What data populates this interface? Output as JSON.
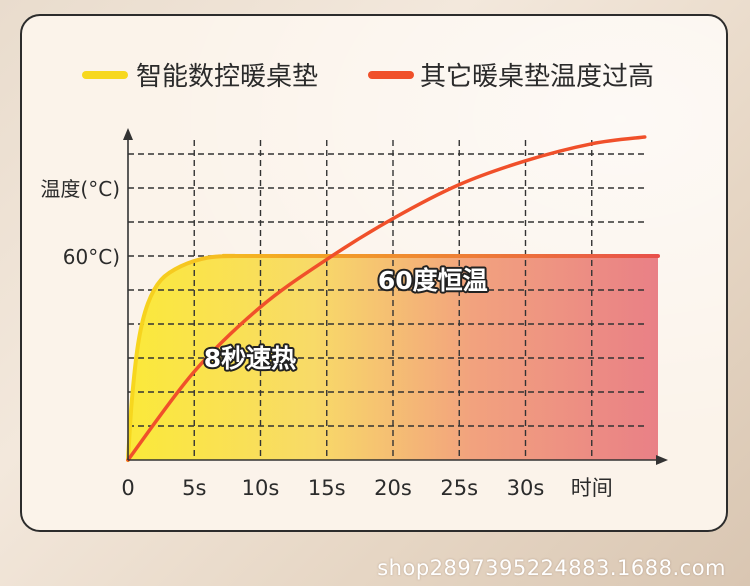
{
  "chart_data": {
    "type": "area",
    "legend": {
      "placement": "top",
      "entries": [
        {
          "label": "智能数控暖桌垫",
          "color": "#f7d81e"
        },
        {
          "label": "其它暖桌垫温度过高",
          "color": "#f0502a"
        }
      ]
    },
    "ylabel": "温度(°C)",
    "xlabel": "时间",
    "x_ticks": [
      "0",
      "5s",
      "10s",
      "15s",
      "20s",
      "25s",
      "30s"
    ],
    "y_marker_label": "60°C)",
    "x_range": [
      0,
      40
    ],
    "y_range": [
      0,
      100
    ],
    "grid": true,
    "series": [
      {
        "name": "智能数控暖桌垫",
        "color": "#f7d81e",
        "x": [
          0,
          0.3,
          0.8,
          1.5,
          2.5,
          4,
          6,
          8,
          10,
          40
        ],
        "y": [
          0,
          18,
          35,
          46,
          53,
          57,
          59.5,
          60,
          60,
          60
        ]
      },
      {
        "name": "其它暖桌垫温度过高",
        "color": "#f0502a",
        "x": [
          0,
          5,
          10,
          15,
          20,
          25,
          30,
          35,
          39
        ],
        "y": [
          0,
          26,
          45,
          59,
          71,
          81,
          88,
          93,
          95
        ]
      }
    ],
    "annotations": [
      "8秒速热",
      "60度恒温"
    ]
  },
  "watermark": "shop2897395224883.1688.com"
}
